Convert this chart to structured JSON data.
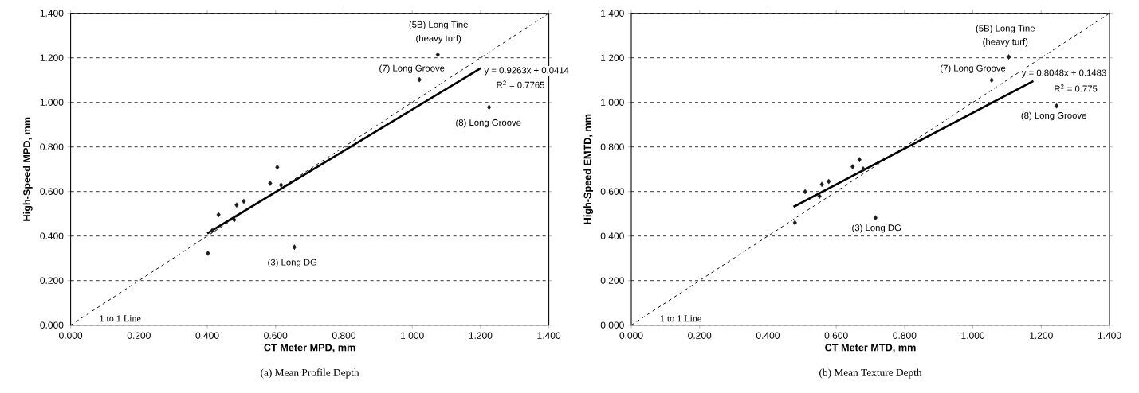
{
  "chart_data": [
    {
      "type": "scatter",
      "xlabel": "CT Meter MPD, mm",
      "ylabel": "High-Speed MPD, mm",
      "grid": "y",
      "xlim": [
        0,
        1.4
      ],
      "ylim": [
        0,
        1.4
      ],
      "xticks": [
        {
          "value": 0,
          "label": "0.000"
        },
        {
          "value": 0.2,
          "label": "0.200"
        },
        {
          "value": 0.4,
          "label": "0.400"
        },
        {
          "value": 0.6,
          "label": "0.600"
        },
        {
          "value": 0.8,
          "label": "0.800"
        },
        {
          "value": 1.0,
          "label": "1.000"
        },
        {
          "value": 1.2,
          "label": "1.200"
        },
        {
          "value": 1.4,
          "label": "1.400"
        }
      ],
      "yticks": [
        {
          "value": 0,
          "label": "0.000"
        },
        {
          "value": 0.2,
          "label": "0.200"
        },
        {
          "value": 0.4,
          "label": "0.400"
        },
        {
          "value": 0.6,
          "label": "0.600"
        },
        {
          "value": 0.8,
          "label": "0.800"
        },
        {
          "value": 1.0,
          "label": "1.000"
        },
        {
          "value": 1.2,
          "label": "1.200"
        },
        {
          "value": 1.4,
          "label": "1.400"
        }
      ],
      "series": [
        {
          "type": "line",
          "line_style": "dashed",
          "color": "#000000",
          "x": [
            0,
            1.4
          ],
          "values": [
            0,
            1.4
          ]
        },
        {
          "marker": "diamond",
          "color": "#1a1a1a",
          "x": [
            0.402,
            0.433,
            0.414,
            0.479,
            0.486,
            0.507,
            0.584,
            0.605,
            0.616,
            0.655,
            1.075,
            1.021,
            1.225
          ],
          "values": [
            0.323,
            0.496,
            0.424,
            0.473,
            0.539,
            0.556,
            0.637,
            0.709,
            0.629,
            0.35,
            1.214,
            1.102,
            0.978
          ]
        },
        {
          "type": "line",
          "line_style": "solid",
          "color": "#000000",
          "x": [
            0.4,
            1.201
          ],
          "values": [
            0.412,
            1.154
          ]
        }
      ],
      "annotations": [
        "(5B) Long Tine",
        "(heavy turf)",
        "(7) Long Groove",
        "(8) Long Groove",
        "(3) Long DG",
        "y = 0.9263x + 0.0414",
        "R$^{2}$ = 0.7765",
        "1 to 1 Line",
        "(a) Mean Profile Depth"
      ]
    },
    {
      "type": "scatter",
      "xlabel": "CT Meter MTD, mm",
      "ylabel": "High-Speed EMTD, mm",
      "grid": "y",
      "xlim": [
        0,
        1.4
      ],
      "ylim": [
        0,
        1.4
      ],
      "xticks": [
        {
          "value": 0,
          "label": "0.000"
        },
        {
          "value": 0.2,
          "label": "0.200"
        },
        {
          "value": 0.4,
          "label": "0.400"
        },
        {
          "value": 0.6,
          "label": "0.600"
        },
        {
          "value": 0.8,
          "label": "0.800"
        },
        {
          "value": 1.0,
          "label": "1.000"
        },
        {
          "value": 1.2,
          "label": "1.200"
        },
        {
          "value": 1.4,
          "label": "1.400"
        }
      ],
      "yticks": [
        {
          "value": 0,
          "label": "0.000"
        },
        {
          "value": 0.2,
          "label": "0.200"
        },
        {
          "value": 0.4,
          "label": "0.400"
        },
        {
          "value": 0.6,
          "label": "0.600"
        },
        {
          "value": 0.8,
          "label": "0.800"
        },
        {
          "value": 1.0,
          "label": "1.000"
        },
        {
          "value": 1.2,
          "label": "1.200"
        },
        {
          "value": 1.4,
          "label": "1.400"
        }
      ],
      "series": [
        {
          "type": "line",
          "line_style": "dashed",
          "color": "#000000",
          "x": [
            0,
            1.4
          ],
          "values": [
            0,
            1.4
          ]
        },
        {
          "marker": "diamond",
          "color": "#1a1a1a",
          "x": [
            0.479,
            0.509,
            0.551,
            0.558,
            0.578,
            0.648,
            0.668,
            0.679,
            0.715,
            1.105,
            1.055,
            1.245
          ],
          "values": [
            0.46,
            0.599,
            0.579,
            0.632,
            0.645,
            0.711,
            0.743,
            0.701,
            0.482,
            1.204,
            1.1,
            0.984
          ]
        },
        {
          "type": "line",
          "line_style": "solid",
          "color": "#000000",
          "x": [
            0.475,
            1.177
          ],
          "values": [
            0.531,
            1.096
          ]
        }
      ],
      "annotations": [
        "(5B) Long Tine",
        "(heavy turf)",
        "(7) Long Groove",
        "(8) Long Groove",
        "(3) Long DG",
        "y = 0.8048x + 0.1483",
        "R$^{2}$ = 0.775",
        "1 to 1 Line",
        "(b) Mean Texture Depth"
      ]
    }
  ]
}
